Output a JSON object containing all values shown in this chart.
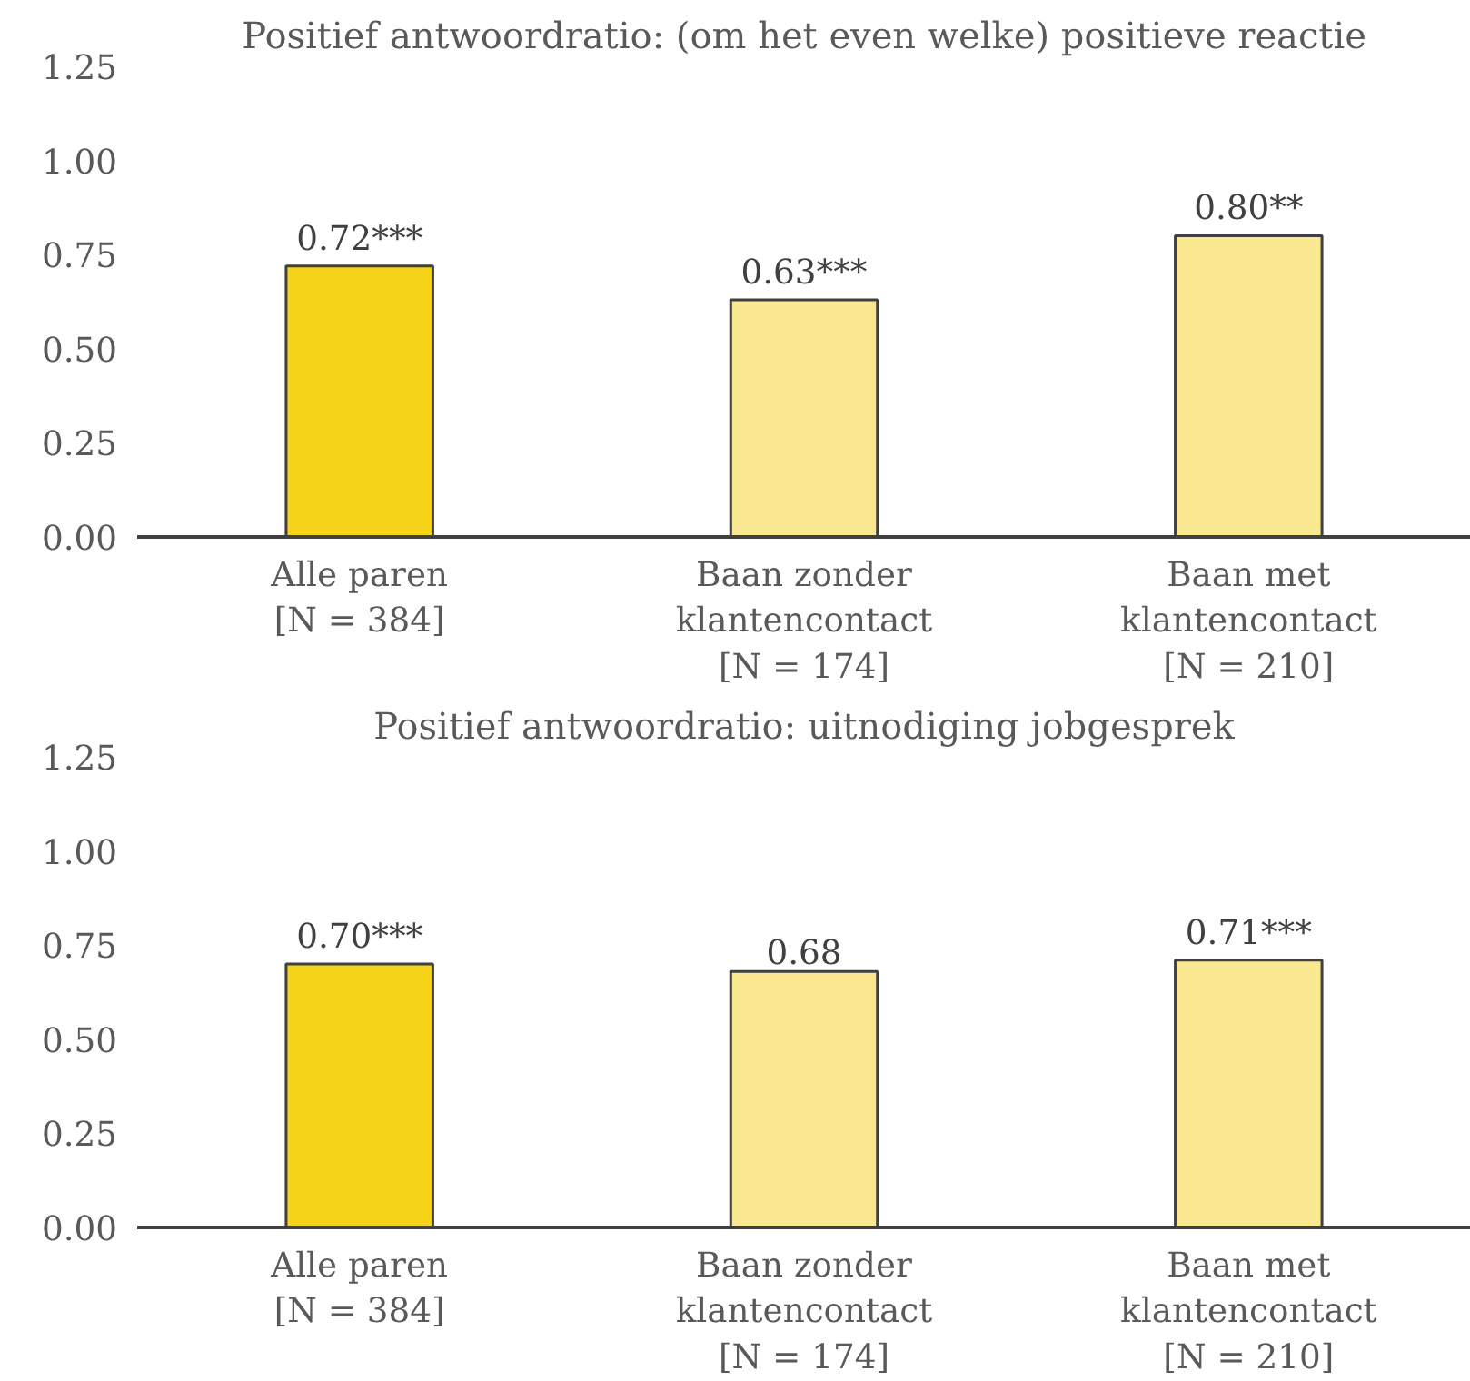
{
  "chart_data": [
    {
      "type": "bar",
      "title": "Positief antwoordratio: (om het even welke) positieve reactie",
      "categories": [
        "Alle paren\n[N = 384]",
        "Baan zonder\nklantencontact\n[N = 174]",
        "Baan met\nklantencontact\n[N = 210]"
      ],
      "values": [
        0.72,
        0.63,
        0.8
      ],
      "value_labels": [
        "0.72***",
        "0.63***",
        "0.80**"
      ],
      "colors": [
        "#f5d318",
        "#f9e88f",
        "#f9e88f"
      ],
      "ylim": [
        0,
        1.25
      ],
      "yticks": [
        {
          "value": 0,
          "label": "0.00"
        },
        {
          "value": 0.25,
          "label": "0.25"
        },
        {
          "value": 0.5,
          "label": "0.50"
        },
        {
          "value": 0.75,
          "label": "0.75"
        },
        {
          "value": 1,
          "label": "1.00"
        },
        {
          "value": 1.25,
          "label": "1.25"
        }
      ]
    },
    {
      "type": "bar",
      "title": "Positief antwoordratio: uitnodiging jobgesprek",
      "categories": [
        "Alle paren\n[N = 384]",
        "Baan zonder\nklantencontact\n[N = 174]",
        "Baan met\nklantencontact\n[N = 210]"
      ],
      "values": [
        0.7,
        0.68,
        0.71
      ],
      "value_labels": [
        "0.70***",
        "0.68",
        "0.71***"
      ],
      "colors": [
        "#f5d318",
        "#f9e88f",
        "#f9e88f"
      ],
      "ylim": [
        0,
        1.25
      ],
      "yticks": [
        {
          "value": 0,
          "label": "0.00"
        },
        {
          "value": 0.25,
          "label": "0.25"
        },
        {
          "value": 0.5,
          "label": "0.50"
        },
        {
          "value": 0.75,
          "label": "0.75"
        },
        {
          "value": 1,
          "label": "1.00"
        },
        {
          "value": 1.25,
          "label": "1.25"
        }
      ]
    }
  ]
}
